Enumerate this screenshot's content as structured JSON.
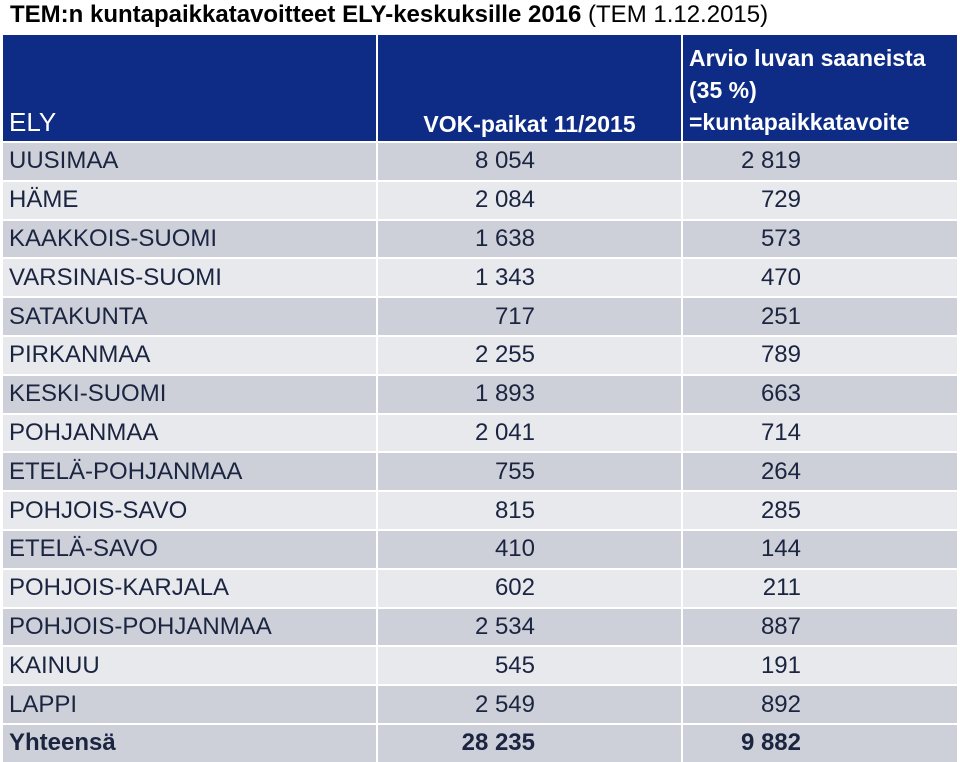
{
  "title": {
    "bold_part": "TEM:n kuntapaikkatavoitteet ELY-keskuksille 2016",
    "light_part": " (TEM 1.12.2015)"
  },
  "table": {
    "headers": {
      "ely": "ELY",
      "vok": "VOK-paikat 11/2015",
      "arvio_line1": "Arvio luvan saaneista",
      "arvio_line2": "(35 %)",
      "arvio_line3": "=kuntapaikkatavoite"
    },
    "rows": [
      {
        "ely": "UUSIMAA",
        "vok": "8 054",
        "arvio": "2 819"
      },
      {
        "ely": "HÄME",
        "vok": "2 084",
        "arvio": "729"
      },
      {
        "ely": "KAAKKOIS-SUOMI",
        "vok": "1 638",
        "arvio": "573"
      },
      {
        "ely": "VARSINAIS-SUOMI",
        "vok": "1 343",
        "arvio": "470"
      },
      {
        "ely": "SATAKUNTA",
        "vok": "717",
        "arvio": "251"
      },
      {
        "ely": "PIRKANMAA",
        "vok": "2 255",
        "arvio": "789"
      },
      {
        "ely": "KESKI-SUOMI",
        "vok": "1 893",
        "arvio": "663"
      },
      {
        "ely": "POHJANMAA",
        "vok": "2 041",
        "arvio": "714"
      },
      {
        "ely": "ETELÄ-POHJANMAA",
        "vok": "755",
        "arvio": "264"
      },
      {
        "ely": "POHJOIS-SAVO",
        "vok": "815",
        "arvio": "285"
      },
      {
        "ely": "ETELÄ-SAVO",
        "vok": "410",
        "arvio": "144"
      },
      {
        "ely": "POHJOIS-KARJALA",
        "vok": "602",
        "arvio": "211"
      },
      {
        "ely": "POHJOIS-POHJANMAA",
        "vok": "2 534",
        "arvio": "887"
      },
      {
        "ely": "KAINUU",
        "vok": "545",
        "arvio": "191"
      },
      {
        "ely": "LAPPI",
        "vok": "2 549",
        "arvio": "892"
      }
    ],
    "total": {
      "ely": "Yhteensä",
      "vok": "28 235",
      "arvio": "9 882"
    }
  }
}
